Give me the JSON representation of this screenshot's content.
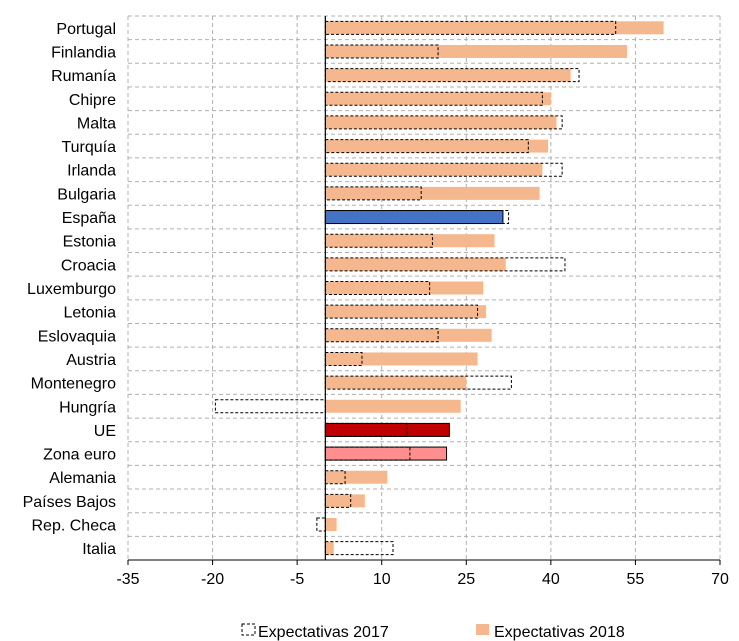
{
  "chart_data": {
    "type": "bar",
    "orientation": "horizontal",
    "categories": [
      "Portugal",
      "Finlandia",
      "Rumanía",
      "Chipre",
      "Malta",
      "Turquía",
      "Irlanda",
      "Bulgaria",
      "España",
      "Estonia",
      "Croacia",
      "Luxemburgo",
      "Letonia",
      "Eslovaquia",
      "Austria",
      "Montenegro",
      "Hungría",
      "UE",
      "Zona euro",
      "Alemania",
      "Países Bajos",
      "Rep. Checa",
      "Italia"
    ],
    "series": [
      {
        "name": "Expectativas 2017",
        "style": "dashed-outline",
        "values": [
          51.5,
          20,
          45,
          38.5,
          42,
          36,
          42,
          17,
          32.5,
          19,
          42.5,
          18.5,
          27,
          20,
          6.5,
          33,
          -19.5,
          14.5,
          15,
          3.5,
          4.5,
          -1.5,
          12
        ]
      },
      {
        "name": "Expectativas 2018",
        "style": "solid",
        "values": [
          60,
          53.5,
          43.5,
          40,
          41,
          39.5,
          38.5,
          38,
          31.5,
          30,
          32,
          28,
          28.5,
          29.5,
          27,
          25,
          24,
          22,
          21.5,
          11,
          7,
          2,
          1.5
        ]
      }
    ],
    "xlim": [
      -35,
      70
    ],
    "xticks": [
      "-35",
      "-20",
      "-5",
      "10",
      "25",
      "40",
      "55",
      "70"
    ],
    "grid": true,
    "legend_position": "bottom",
    "colors": {
      "bar_2018": "#f5b78e",
      "highlight_espana": "#4472c4",
      "highlight_ue": "#c00000",
      "highlight_zona_euro": "#ff8f8f",
      "grid": "#b0b0b0",
      "outline": "#000000"
    },
    "highlights": {
      "España": "highlight_espana",
      "UE": "highlight_ue",
      "Zona euro": "highlight_zona_euro"
    }
  }
}
